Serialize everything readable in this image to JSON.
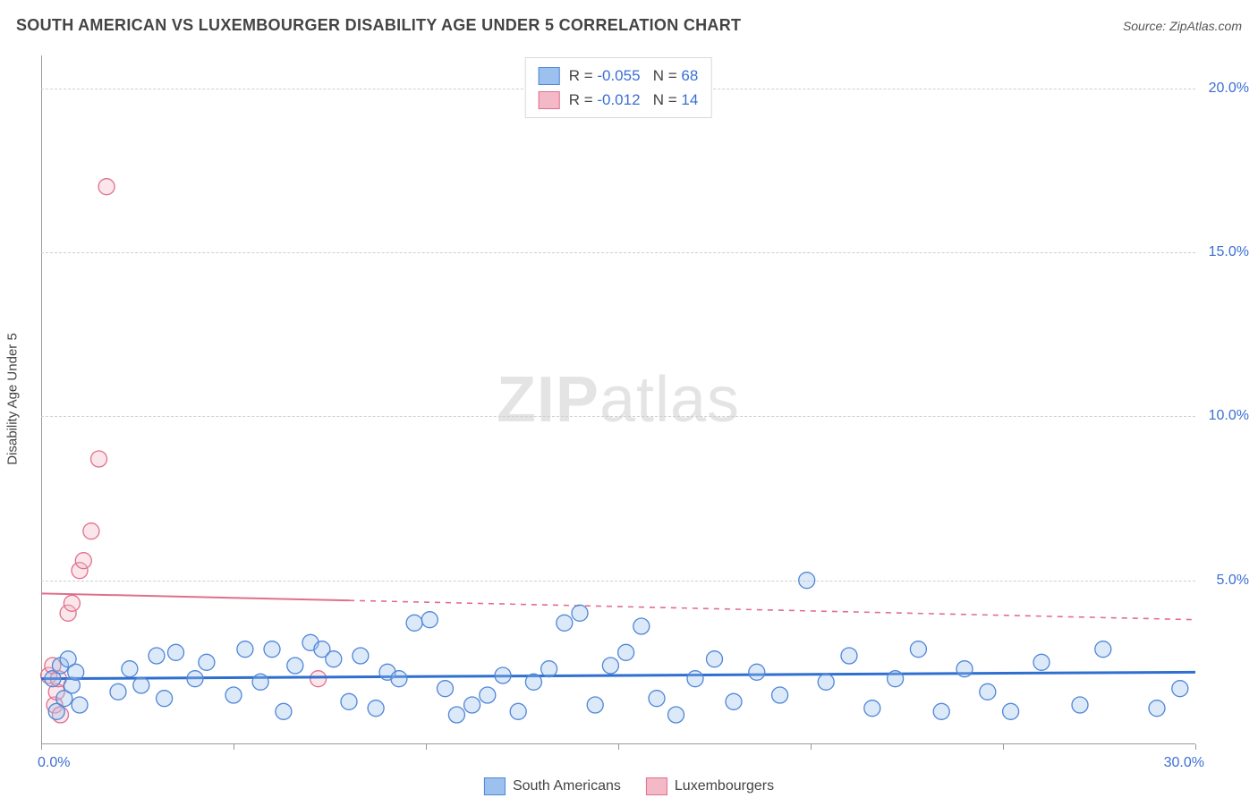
{
  "header": {
    "title": "SOUTH AMERICAN VS LUXEMBOURGER DISABILITY AGE UNDER 5 CORRELATION CHART",
    "source_label": "Source:",
    "source_name": "ZipAtlas.com"
  },
  "y_axis_title": "Disability Age Under 5",
  "watermark": {
    "bold": "ZIP",
    "rest": "atlas"
  },
  "chart": {
    "type": "scatter",
    "xlim": [
      0,
      30
    ],
    "ylim": [
      0,
      21
    ],
    "x_tick_step": 5,
    "y_ticks": [
      5,
      10,
      15,
      20
    ],
    "y_tick_labels": [
      "5.0%",
      "10.0%",
      "15.0%",
      "20.0%"
    ],
    "x_corner_left": "0.0%",
    "x_corner_right": "30.0%",
    "background_color": "#ffffff",
    "grid_color": "#cfcfcf",
    "axis_color": "#999999",
    "tick_label_color": "#3b6fd4",
    "marker_radius": 9,
    "series": [
      {
        "name": "South Americans",
        "fill": "#9cc1ef",
        "stroke": "#4f86d8",
        "trend": {
          "y_at_x0": 2.0,
          "y_at_xmax": 2.2,
          "color": "#2f6fd0",
          "width": 3,
          "x_solid_end": 30
        },
        "stats": {
          "R": "-0.055",
          "N": "68"
        },
        "points": [
          [
            0.3,
            2.0
          ],
          [
            0.4,
            1.0
          ],
          [
            0.5,
            2.4
          ],
          [
            0.6,
            1.4
          ],
          [
            0.7,
            2.6
          ],
          [
            0.8,
            1.8
          ],
          [
            0.9,
            2.2
          ],
          [
            1.0,
            1.2
          ],
          [
            2.0,
            1.6
          ],
          [
            2.3,
            2.3
          ],
          [
            2.6,
            1.8
          ],
          [
            3.0,
            2.7
          ],
          [
            3.2,
            1.4
          ],
          [
            3.5,
            2.8
          ],
          [
            4.0,
            2.0
          ],
          [
            4.3,
            2.5
          ],
          [
            5.0,
            1.5
          ],
          [
            5.3,
            2.9
          ],
          [
            5.7,
            1.9
          ],
          [
            6.0,
            2.9
          ],
          [
            6.3,
            1.0
          ],
          [
            6.6,
            2.4
          ],
          [
            7.0,
            3.1
          ],
          [
            7.3,
            2.9
          ],
          [
            7.6,
            2.6
          ],
          [
            8.0,
            1.3
          ],
          [
            8.3,
            2.7
          ],
          [
            8.7,
            1.1
          ],
          [
            9.0,
            2.2
          ],
          [
            9.3,
            2.0
          ],
          [
            9.7,
            3.7
          ],
          [
            10.1,
            3.8
          ],
          [
            10.5,
            1.7
          ],
          [
            10.8,
            0.9
          ],
          [
            11.2,
            1.2
          ],
          [
            11.6,
            1.5
          ],
          [
            12.0,
            2.1
          ],
          [
            12.4,
            1.0
          ],
          [
            12.8,
            1.9
          ],
          [
            13.2,
            2.3
          ],
          [
            13.6,
            3.7
          ],
          [
            14.0,
            4.0
          ],
          [
            14.4,
            1.2
          ],
          [
            14.8,
            2.4
          ],
          [
            15.2,
            2.8
          ],
          [
            15.6,
            3.6
          ],
          [
            16.0,
            1.4
          ],
          [
            16.5,
            0.9
          ],
          [
            17.0,
            2.0
          ],
          [
            17.5,
            2.6
          ],
          [
            18.0,
            1.3
          ],
          [
            18.6,
            2.2
          ],
          [
            19.2,
            1.5
          ],
          [
            19.9,
            5.0
          ],
          [
            20.4,
            1.9
          ],
          [
            21.0,
            2.7
          ],
          [
            21.6,
            1.1
          ],
          [
            22.2,
            2.0
          ],
          [
            22.8,
            2.9
          ],
          [
            23.4,
            1.0
          ],
          [
            24.0,
            2.3
          ],
          [
            24.6,
            1.6
          ],
          [
            25.2,
            1.0
          ],
          [
            26.0,
            2.5
          ],
          [
            27.0,
            1.2
          ],
          [
            27.6,
            2.9
          ],
          [
            29.0,
            1.1
          ],
          [
            29.6,
            1.7
          ]
        ]
      },
      {
        "name": "Luxembourgers",
        "fill": "#f4b9c6",
        "stroke": "#e06f8c",
        "trend": {
          "y_at_x0": 4.6,
          "y_at_xmax": 3.8,
          "color": "#e06f8c",
          "width": 2,
          "x_solid_end": 8
        },
        "stats": {
          "R": "-0.012",
          "N": "14"
        },
        "points": [
          [
            0.2,
            2.1
          ],
          [
            0.3,
            2.4
          ],
          [
            0.35,
            1.2
          ],
          [
            0.4,
            1.6
          ],
          [
            0.45,
            2.0
          ],
          [
            0.5,
            0.9
          ],
          [
            0.7,
            4.0
          ],
          [
            0.8,
            4.3
          ],
          [
            1.0,
            5.3
          ],
          [
            1.1,
            5.6
          ],
          [
            1.3,
            6.5
          ],
          [
            1.5,
            8.7
          ],
          [
            1.7,
            17.0
          ],
          [
            7.2,
            2.0
          ]
        ]
      }
    ]
  },
  "stats_box": {
    "rows": [
      {
        "swatch_fill": "#9cc1ef",
        "swatch_stroke": "#4f86d8",
        "R": "-0.055",
        "N": "68"
      },
      {
        "swatch_fill": "#f4b9c6",
        "swatch_stroke": "#e06f8c",
        "R": "-0.012",
        "N": "14"
      }
    ]
  },
  "legend": {
    "items": [
      {
        "label": "South Americans",
        "fill": "#9cc1ef",
        "stroke": "#4f86d8"
      },
      {
        "label": "Luxembourgers",
        "fill": "#f4b9c6",
        "stroke": "#e06f8c"
      }
    ]
  }
}
